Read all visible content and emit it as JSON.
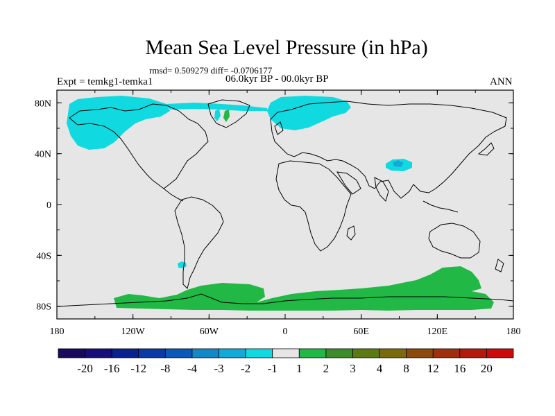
{
  "title": "Mean Sea Level Pressure (in hPa)",
  "stats_line": "rmsd= 0.509279 diff= -0.0706177",
  "experiment": "Expt = temkg1-temka1",
  "period": "06.0kyr BP - 00.0kyr BP",
  "season": "ANN",
  "x_ticks": [
    "180",
    "120W",
    "60W",
    "0",
    "60E",
    "120E",
    "180"
  ],
  "y_ticks": [
    "80N",
    "40N",
    "0",
    "40S",
    "80S"
  ],
  "colorbar": {
    "labels": [
      "-20",
      "-16",
      "-12",
      "-8",
      "-4",
      "-3",
      "-2",
      "-1",
      "1",
      "2",
      "3",
      "4",
      "8",
      "12",
      "16",
      "20"
    ],
    "colors": [
      "#1a0a5e",
      "#160f7a",
      "#0a2290",
      "#0a3aa6",
      "#0a58b8",
      "#1288c8",
      "#12aad8",
      "#10dae0",
      "#e6e6e6",
      "#22b845",
      "#3c8c2c",
      "#5c7a14",
      "#7a6a0c",
      "#8c4a0c",
      "#a0300c",
      "#b41a0c",
      "#cc0a0a"
    ]
  },
  "map_colors": {
    "background": "#e6e6e6",
    "negative_light": "#10dae0",
    "negative_mid": "#12aad8",
    "positive": "#22b845"
  }
}
